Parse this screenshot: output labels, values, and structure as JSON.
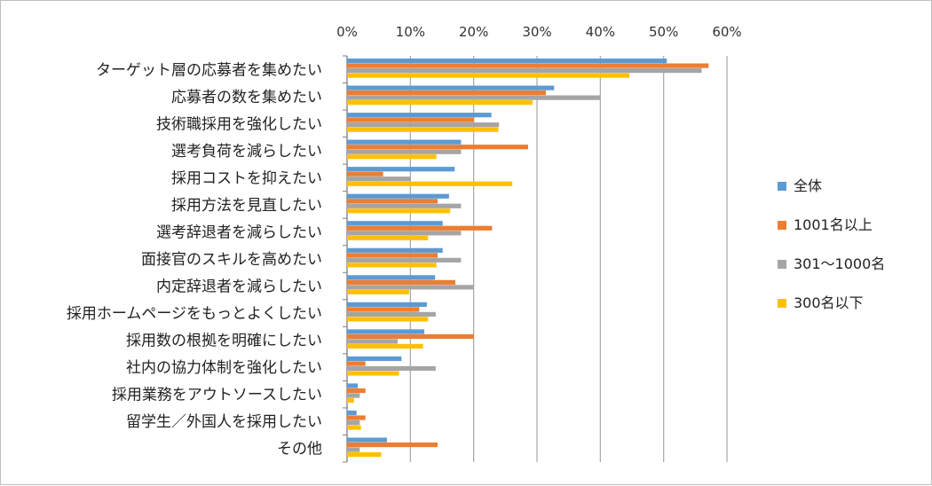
{
  "chart_data": {
    "type": "bar",
    "orientation": "horizontal",
    "xlim": [
      0,
      60
    ],
    "ticks": [
      "0%",
      "10%",
      "20%",
      "30%",
      "40%",
      "50%",
      "60%"
    ],
    "tick_values": [
      0,
      10,
      20,
      30,
      40,
      50,
      60
    ],
    "x_axis_position": "top",
    "grid": true,
    "legend_position": "right",
    "categories": [
      "ターゲット層の応募者を集めたい",
      "応募者の数を集めたい",
      "技術職採用を強化したい",
      "選考負荷を減らしたい",
      "採用コストを抑えたい",
      "採用方法を見直したい",
      "選考辞退者を減らしたい",
      "面接官のスキルを高めたい",
      "内定辞退者を減らしたい",
      "採用ホームページをもっとよくしたい",
      "採用数の根拠を明確にしたい",
      "社内の協力体制を強化したい",
      "採用業務をアウトソースしたい",
      "留学生／外国人を採用したい",
      "その他"
    ],
    "series": [
      {
        "name": "全体",
        "color": "#5B9BD5",
        "values": [
          50.5,
          32.7,
          22.8,
          18.0,
          17.0,
          16.1,
          15.1,
          15.1,
          13.9,
          12.6,
          12.2,
          8.6,
          1.7,
          1.5,
          6.3
        ]
      },
      {
        "name": "1001名以上",
        "color": "#ED7D31",
        "values": [
          57.1,
          31.4,
          20.0,
          28.6,
          5.7,
          14.3,
          22.9,
          14.3,
          17.1,
          11.4,
          20.0,
          2.9,
          2.9,
          2.9,
          14.3
        ]
      },
      {
        "name": "301～1000名",
        "color": "#A5A5A5",
        "values": [
          56.0,
          40.0,
          24.0,
          18.0,
          10.0,
          18.0,
          18.0,
          18.0,
          20.0,
          14.0,
          8.0,
          14.0,
          2.0,
          2.0,
          2.0
        ]
      },
      {
        "name": "300名以下",
        "color": "#FFC000",
        "values": [
          44.6,
          29.3,
          23.9,
          14.1,
          26.1,
          16.3,
          12.8,
          14.1,
          9.8,
          12.8,
          12.0,
          8.2,
          1.1,
          2.2,
          5.4
        ]
      }
    ]
  }
}
